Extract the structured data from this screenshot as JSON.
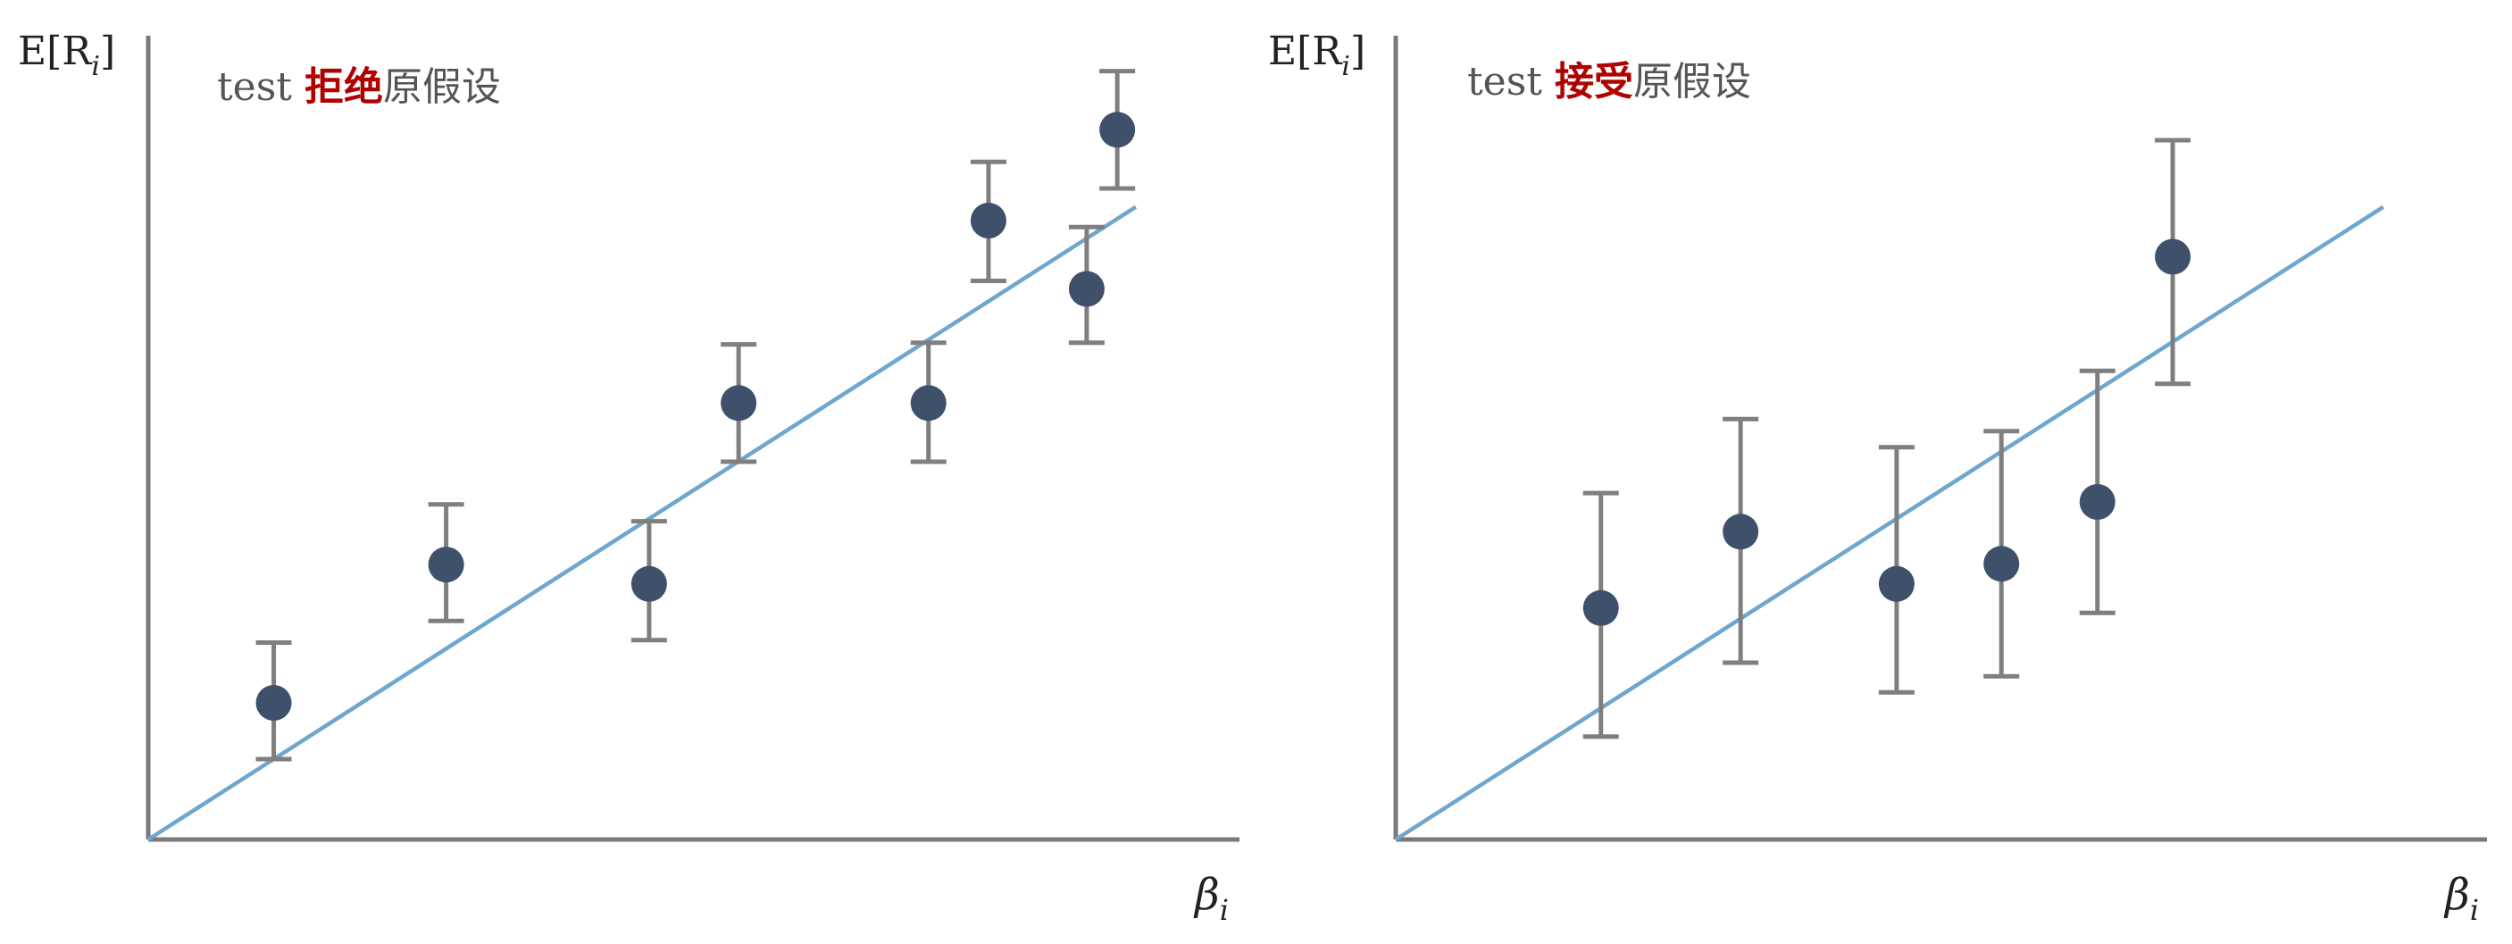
{
  "colors": {
    "axis": "#7a7a7a",
    "errorbar": "#7f7f7f",
    "point": "#3f506b",
    "fit_line": "#6fa6cf",
    "annotation_text": "#555555",
    "annotation_highlight": "#b00000"
  },
  "chart_data": [
    {
      "type": "scatter",
      "ylabel": "E[R",
      "ylabel_sub": "i",
      "ylabel_close": "]",
      "xlabel": "β",
      "xlabel_sub": "i",
      "annotation": {
        "prefix": "test ",
        "highlight": "拒绝",
        "suffix": "原假设"
      },
      "xlim": [
        0,
        1
      ],
      "ylim": [
        0,
        1
      ],
      "grid": false,
      "ticks": false,
      "fit_line": {
        "x": [
          0,
          0.905
        ],
        "y": [
          0,
          0.787
        ]
      },
      "points": [
        {
          "x": 0.115,
          "y": 0.17,
          "err_low": 0.07,
          "err_high": 0.075
        },
        {
          "x": 0.273,
          "y": 0.342,
          "err_low": 0.07,
          "err_high": 0.075
        },
        {
          "x": 0.459,
          "y": 0.318,
          "err_low": 0.07,
          "err_high": 0.078
        },
        {
          "x": 0.541,
          "y": 0.543,
          "err_low": 0.073,
          "err_high": 0.073
        },
        {
          "x": 0.715,
          "y": 0.543,
          "err_low": 0.073,
          "err_high": 0.075
        },
        {
          "x": 0.77,
          "y": 0.77,
          "err_low": 0.075,
          "err_high": 0.073
        },
        {
          "x": 0.86,
          "y": 0.685,
          "err_low": 0.067,
          "err_high": 0.077
        },
        {
          "x": 0.888,
          "y": 0.883,
          "err_low": 0.073,
          "err_high": 0.073
        }
      ]
    },
    {
      "type": "scatter",
      "ylabel": "E[R",
      "ylabel_sub": "i",
      "ylabel_close": "]",
      "xlabel": "β",
      "xlabel_sub": "i",
      "annotation": {
        "prefix": "test ",
        "highlight": "接受",
        "suffix": "原假设"
      },
      "xlim": [
        0,
        1
      ],
      "ylim": [
        0,
        1
      ],
      "grid": false,
      "ticks": false,
      "fit_line": {
        "x": [
          0,
          0.905
        ],
        "y": [
          0,
          0.787
        ]
      },
      "points": [
        {
          "x": 0.188,
          "y": 0.288,
          "err_low": 0.16,
          "err_high": 0.143
        },
        {
          "x": 0.316,
          "y": 0.383,
          "err_low": 0.163,
          "err_high": 0.14
        },
        {
          "x": 0.459,
          "y": 0.318,
          "err_low": 0.135,
          "err_high": 0.17
        },
        {
          "x": 0.555,
          "y": 0.343,
          "err_low": 0.14,
          "err_high": 0.165
        },
        {
          "x": 0.643,
          "y": 0.42,
          "err_low": 0.138,
          "err_high": 0.163
        },
        {
          "x": 0.712,
          "y": 0.725,
          "err_low": 0.158,
          "err_high": 0.145
        }
      ]
    }
  ]
}
